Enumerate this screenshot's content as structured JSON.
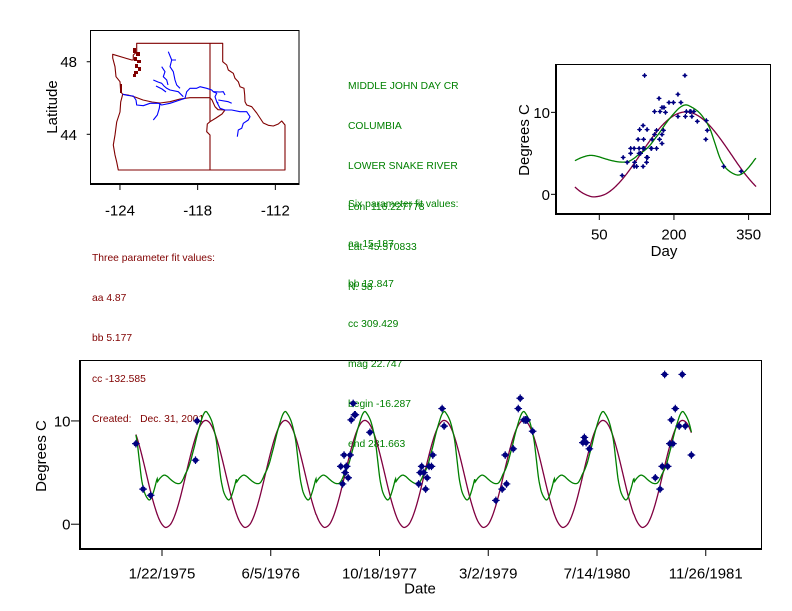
{
  "map_panel": {
    "ylabel": "Latitude",
    "lon_ticks": [
      -124,
      -118,
      -112
    ],
    "lon_tick_labels": [
      "-124",
      "-118",
      "-112"
    ],
    "lat_ticks": [
      48,
      44
    ],
    "lat_tick_labels": [
      "48",
      "44"
    ],
    "lon_range": [
      -126.26,
      -110.15
    ],
    "lat_range": [
      41.26,
      49.75
    ],
    "colors": {
      "boundary": "#800000",
      "rivers": "#0000ff"
    }
  },
  "three_param": {
    "title": "Three parameter fit values:",
    "aa": "aa 4.87",
    "bb": "bb 5.177",
    "cc": "cc -132.585",
    "created": "Created:   Dec. 31, 2001",
    "color": "#800000"
  },
  "site": {
    "name": "MIDDLE JOHN DAY CR",
    "basin": "COLUMBIA",
    "subbasin": "LOWER SNAKE RIVER",
    "lon": "Lon. 116.227778",
    "lat": "Lat. 45.570833",
    "n": "N: 58",
    "color": "#008000"
  },
  "six_param": {
    "title": "Six parameter fit values:",
    "aa": "aa 15.187",
    "bb": "bb 12.847",
    "cc": "cc 309.429",
    "mag": "mag 22.747",
    "begin": "begin -16.287",
    "end": "end 281.663",
    "color": "#008000"
  },
  "chart_data": [
    {
      "type": "scatter",
      "title": "",
      "xlabel": "Day",
      "ylabel": "Degrees C",
      "xlim": [
        -37,
        393
      ],
      "ylim": [
        -2.4,
        15.9
      ],
      "xticks": [
        50,
        200,
        350
      ],
      "xtick_labels": [
        "50",
        "200",
        "350"
      ],
      "yticks": [
        0,
        10
      ],
      "ytick_labels": [
        "0",
        "10"
      ],
      "grid": false,
      "legend": "none",
      "point_color": "#000080",
      "points": {
        "day": [
          267,
          300,
          335,
          176,
          183,
          113,
          121,
          128,
          133,
          138,
          140,
          147,
          156,
          161,
          170,
          176,
          180,
          247,
          106,
          113,
          120,
          130,
          138,
          145,
          154,
          165,
          171,
          214,
          223,
          96,
          125,
          139,
          145,
          176,
          199,
          208,
          225,
          232,
          234,
          240,
          265,
          131,
          138,
          146,
          161,
          98,
          120,
          130,
          141,
          155,
          165,
          172,
          179,
          190,
          208,
          222,
          236,
          264
        ],
        "temp": [
          7.8,
          3.4,
          2.8,
          6.2,
          10.0,
          5.6,
          3.9,
          6.7,
          5.0,
          5.6,
          5.6,
          4.5,
          6.7,
          10.1,
          11.7,
          10.6,
          10.6,
          8.9,
          3.9,
          5.0,
          5.6,
          5.0,
          3.4,
          4.5,
          5.6,
          5.6,
          6.7,
          11.2,
          9.5,
          2.3,
          3.4,
          6.7,
          3.9,
          7.3,
          11.2,
          12.2,
          10.1,
          10.1,
          10.1,
          10.1,
          9.0,
          7.9,
          8.4,
          7.9,
          7.3,
          4.5,
          3.4,
          5.6,
          14.5,
          5.6,
          7.8,
          10.1,
          7.8,
          11.2,
          9.5,
          14.5,
          9.5,
          6.7
        ]
      },
      "series": [
        {
          "name": "Three parameter fit",
          "color": "#800040",
          "day": [
            1,
            15,
            30,
            41,
            60,
            75,
            90,
            105,
            120,
            135,
            150,
            165,
            180,
            195,
            210,
            224,
            240,
            255,
            270,
            285,
            300,
            315,
            330,
            345,
            365
          ],
          "temp": [
            0.9,
            0.22,
            -0.21,
            -0.31,
            -0.04,
            0.54,
            1.41,
            2.5,
            3.76,
            5.09,
            6.4,
            7.61,
            8.64,
            9.42,
            9.9,
            10.05,
            9.85,
            9.32,
            8.5,
            7.43,
            6.2,
            4.88,
            3.55,
            2.32,
            0.95
          ]
        },
        {
          "name": "Six parameter fit",
          "color": "#008000",
          "day": [
            1,
            15,
            31,
            45,
            61,
            76,
            92,
            108,
            120,
            128,
            140,
            152,
            162,
            172,
            182,
            192,
            202,
            210,
            219,
            226,
            232,
            242,
            252,
            262,
            272,
            282,
            292,
            300,
            306,
            317,
            329,
            339,
            349,
            357,
            365
          ],
          "temp": [
            4.1,
            4.5,
            4.75,
            4.65,
            4.35,
            4.1,
            3.94,
            4.0,
            4.4,
            4.8,
            5.3,
            6.0,
            6.8,
            7.6,
            8.5,
            9.3,
            10.0,
            10.5,
            10.85,
            10.9,
            10.75,
            10.4,
            9.9,
            9.1,
            8.05,
            6.3,
            4.5,
            3.6,
            3.1,
            2.6,
            2.35,
            2.6,
            3.2,
            3.8,
            4.4
          ]
        }
      ]
    },
    {
      "type": "scatter",
      "title": "",
      "xlabel": "Date",
      "ylabel": "Degrees C",
      "xlim": [
        "1974-01-10",
        "1982-08-07"
      ],
      "ylim": [
        -2.4,
        15.9
      ],
      "xticks": [
        "1975-01-22",
        "1976-06-05",
        "1977-10-18",
        "1979-03-02",
        "1980-07-14",
        "1981-11-26"
      ],
      "xtick_labels": [
        "1/22/1975",
        "6/5/1976",
        "10/18/1977",
        "3/2/1979",
        "7/14/1980",
        "11/26/1981"
      ],
      "yticks": [
        0,
        10
      ],
      "ytick_labels": [
        "0",
        "10"
      ],
      "grid": false,
      "legend": "none",
      "point_color": "#000080",
      "points": {
        "date": [
          "1974-09-24",
          "1974-10-27",
          "1974-12-01",
          "1975-06-25",
          "1975-07-02",
          "1977-04-23",
          "1977-05-01",
          "1977-05-08",
          "1977-05-13",
          "1977-05-18",
          "1977-05-20",
          "1977-05-27",
          "1977-06-05",
          "1977-06-10",
          "1977-06-19",
          "1977-06-25",
          "1977-06-29",
          "1977-09-04",
          "1978-04-16",
          "1978-04-23",
          "1978-04-30",
          "1978-05-10",
          "1978-05-18",
          "1978-05-25",
          "1978-06-03",
          "1978-06-14",
          "1978-06-20",
          "1978-08-02",
          "1978-08-11",
          "1979-04-06",
          "1979-05-05",
          "1979-05-19",
          "1979-05-25",
          "1979-06-25",
          "1979-07-18",
          "1979-07-27",
          "1979-08-13",
          "1979-08-20",
          "1979-08-22",
          "1979-08-28",
          "1979-09-22",
          "1980-05-10",
          "1980-05-17",
          "1980-05-25",
          "1980-06-09",
          "1981-04-08",
          "1981-04-30",
          "1981-05-10",
          "1981-05-21",
          "1981-06-04",
          "1981-06-14",
          "1981-06-21",
          "1981-06-28",
          "1981-07-09",
          "1981-07-27",
          "1981-08-10",
          "1981-08-24",
          "1981-09-21"
        ],
        "temp": [
          7.8,
          3.4,
          2.8,
          6.2,
          10.0,
          5.6,
          3.9,
          6.7,
          5.0,
          5.6,
          5.6,
          4.5,
          6.7,
          10.1,
          11.7,
          10.6,
          10.6,
          8.9,
          3.9,
          5.0,
          5.6,
          5.0,
          3.4,
          4.5,
          5.6,
          5.6,
          6.7,
          11.2,
          9.5,
          2.3,
          3.4,
          6.7,
          3.9,
          7.3,
          11.2,
          12.2,
          10.1,
          10.1,
          10.1,
          10.1,
          9.0,
          7.9,
          8.4,
          7.9,
          7.3,
          4.5,
          3.4,
          5.6,
          14.5,
          5.6,
          7.8,
          10.1,
          7.8,
          11.2,
          9.5,
          14.5,
          9.5,
          6.7
        ]
      },
      "series": [
        {
          "name": "Three parameter fit",
          "color": "#800040",
          "date_range": [
            "1974-09-24",
            "1981-09-21"
          ],
          "annual_cycle": "same seasonal curve as chart 1 series 1, repeated yearly"
        },
        {
          "name": "Six parameter fit",
          "color": "#008000",
          "date_range": [
            "1974-09-24",
            "1981-09-21"
          ],
          "annual_cycle": "same seasonal curve as chart 1 series 2, repeated yearly"
        }
      ]
    }
  ]
}
